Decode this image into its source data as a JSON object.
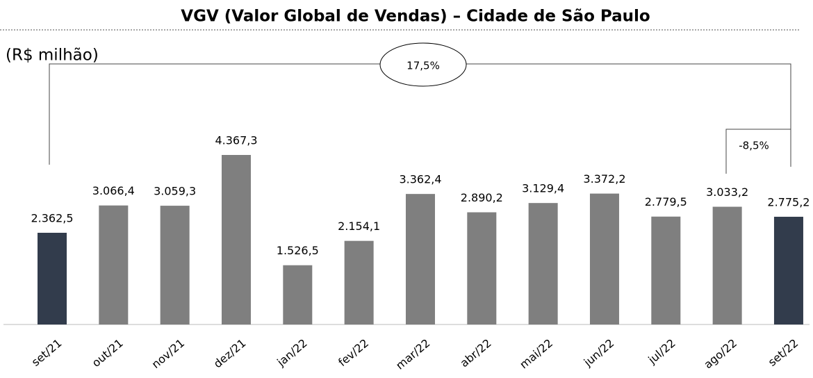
{
  "chart_data": {
    "type": "bar",
    "title": "VGV (Valor Global de Vendas) – Cidade de São Paulo",
    "unit_label": "(R$ milhão)",
    "annotations": [
      "17,5%",
      "-8,5%"
    ],
    "categories": [
      "set/21",
      "out/21",
      "nov/21",
      "dez/21",
      "jan/22",
      "fev/22",
      "mar/22",
      "abr/22",
      "mai/22",
      "jun/22",
      "jul/22",
      "ago/22",
      "set/22"
    ],
    "values": [
      2362.5,
      3066.4,
      3059.3,
      4367.3,
      1526.5,
      2154.1,
      3362.4,
      2890.2,
      3129.4,
      3372.2,
      2779.5,
      3033.2,
      2775.2
    ],
    "value_labels": [
      "2.362,5",
      "3.066,4",
      "3.059,3",
      "4.367,3",
      "1.526,5",
      "2.154,1",
      "3.362,4",
      "2.890,2",
      "3.129,4",
      "3.372,2",
      "2.779,5",
      "3.033,2",
      "2.775,2"
    ],
    "colors": [
      "#323c4c",
      "#7f7f7f",
      "#7f7f7f",
      "#7f7f7f",
      "#7f7f7f",
      "#7f7f7f",
      "#7f7f7f",
      "#7f7f7f",
      "#7f7f7f",
      "#7f7f7f",
      "#7f7f7f",
      "#7f7f7f",
      "#323c4c"
    ]
  }
}
